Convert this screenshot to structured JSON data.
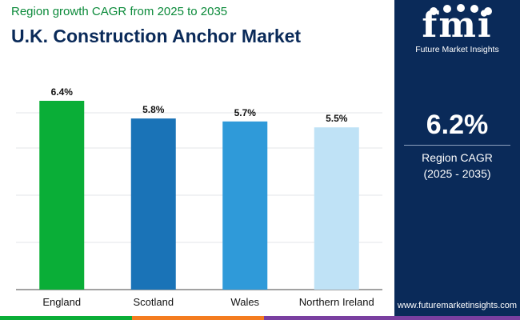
{
  "header": {
    "subtitle": "Region growth CAGR from 2025 to 2035",
    "title": "U.K. Construction Anchor Market"
  },
  "chart_data": {
    "type": "bar",
    "categories": [
      "England",
      "Scotland",
      "Wales",
      "Northern Ireland"
    ],
    "values": [
      6.4,
      5.8,
      5.7,
      5.5
    ],
    "data_labels": [
      "6.4%",
      "5.8%",
      "5.7%",
      "5.5%"
    ],
    "bar_colors": [
      "#0aae37",
      "#1a73b7",
      "#2f9ad9",
      "#bfe2f6"
    ],
    "ylim": [
      0,
      6.4
    ],
    "grid": true,
    "legend": "none",
    "xlabel": "",
    "ylabel": ""
  },
  "panel": {
    "logo_text": "fmi",
    "brand_name": "Future Market Insights",
    "value": "6.2%",
    "label_line1": "Region CAGR",
    "label_line2": "(2025 - 2035)",
    "website": "www.futuremarketinsights.com"
  },
  "colors": {
    "navy": "#0a2a59",
    "subtitle_green": "#0b8a3a",
    "strip": [
      "#0aae37",
      "#f47c20",
      "#7a3fa0"
    ]
  }
}
